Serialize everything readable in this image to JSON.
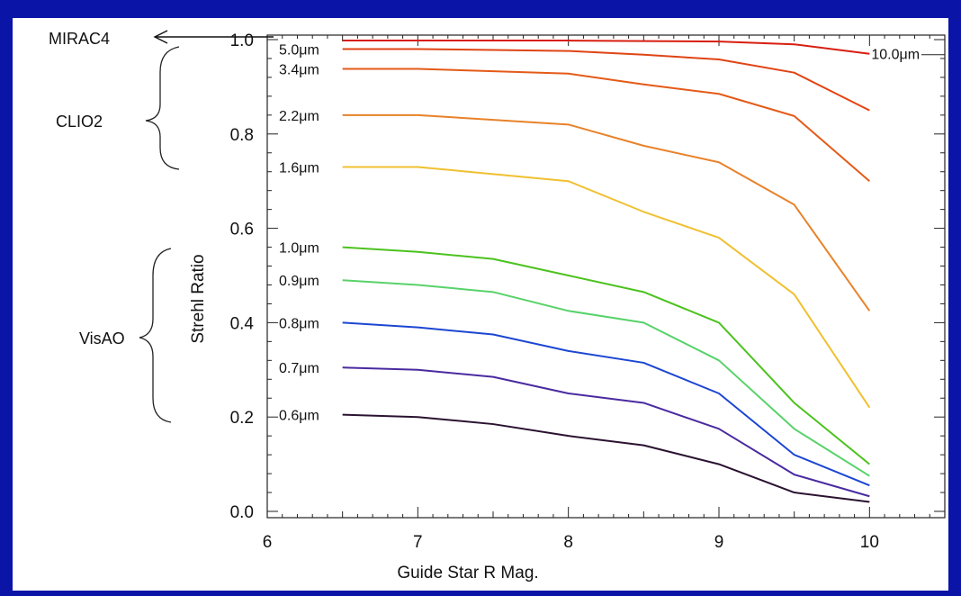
{
  "chart_data": {
    "type": "line",
    "title": "",
    "xlabel": "Guide Star R Mag.",
    "ylabel": "Strehl Ratio",
    "xlim": [
      6,
      10.5
    ],
    "ylim": [
      0,
      1
    ],
    "xticks": [
      "6",
      "7",
      "8",
      "9",
      "10"
    ],
    "yticks": [
      "0.0",
      "0.2",
      "0.4",
      "0.6",
      "0.8",
      "1.0"
    ],
    "grid": false,
    "x": [
      6.5,
      7.0,
      7.5,
      8.0,
      8.5,
      9.0,
      9.5,
      10.0
    ],
    "series": [
      {
        "name": "10.0μm",
        "color": "#d81e10",
        "values": [
          0.998,
          0.998,
          0.998,
          0.998,
          0.997,
          0.996,
          0.99,
          0.97
        ],
        "label_side": "right"
      },
      {
        "name": "5.0μm",
        "color": "#e04414",
        "values": [
          0.98,
          0.98,
          0.978,
          0.976,
          0.968,
          0.958,
          0.93,
          0.85
        ],
        "label_side": "left"
      },
      {
        "name": "3.4μm",
        "color": "#e45a18",
        "values": [
          0.938,
          0.938,
          0.933,
          0.928,
          0.905,
          0.885,
          0.838,
          0.7
        ],
        "label_side": "left"
      },
      {
        "name": "2.2μm",
        "color": "#e8822a",
        "values": [
          0.84,
          0.84,
          0.83,
          0.82,
          0.775,
          0.74,
          0.65,
          0.425
        ],
        "label_side": "left"
      },
      {
        "name": "1.6μm",
        "color": "#f0c030",
        "values": [
          0.73,
          0.73,
          0.715,
          0.7,
          0.635,
          0.58,
          0.46,
          0.22
        ],
        "label_side": "left"
      },
      {
        "name": "1.0μm",
        "color": "#4cc21e",
        "values": [
          0.56,
          0.55,
          0.535,
          0.5,
          0.465,
          0.4,
          0.23,
          0.1
        ],
        "label_side": "left"
      },
      {
        "name": "0.9μm",
        "color": "#58d26a",
        "values": [
          0.49,
          0.48,
          0.465,
          0.425,
          0.4,
          0.32,
          0.175,
          0.075
        ],
        "label_side": "left"
      },
      {
        "name": "0.8μm",
        "color": "#1c46d2",
        "values": [
          0.4,
          0.39,
          0.375,
          0.34,
          0.315,
          0.25,
          0.12,
          0.055
        ],
        "label_side": "left"
      },
      {
        "name": "0.7μm",
        "color": "#4a2aa0",
        "values": [
          0.305,
          0.3,
          0.285,
          0.25,
          0.23,
          0.175,
          0.078,
          0.032
        ],
        "label_side": "left"
      },
      {
        "name": "0.6μm",
        "color": "#2a1230",
        "values": [
          0.205,
          0.2,
          0.185,
          0.16,
          0.14,
          0.1,
          0.04,
          0.02
        ],
        "label_side": "left"
      }
    ],
    "annotations": {
      "mirac": "MIRAC4",
      "clio": "CLIO2",
      "visao": "VisAO"
    }
  }
}
